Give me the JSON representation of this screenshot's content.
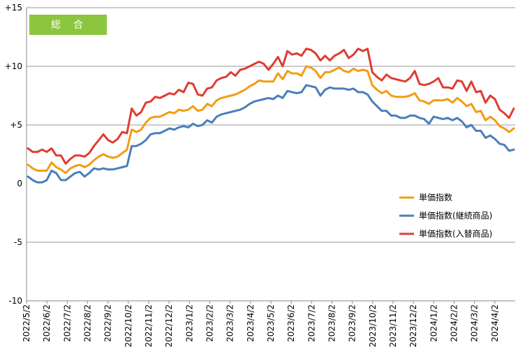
{
  "chart_data": {
    "type": "line",
    "title": "総　合",
    "title_box_color": "#8cc63f",
    "xlabel": "",
    "ylabel": "",
    "ylim": [
      -10,
      15
    ],
    "yticks": [
      {
        "value": 15,
        "label": "+15"
      },
      {
        "value": 10,
        "label": "+10"
      },
      {
        "value": 5,
        "label": "+5"
      },
      {
        "value": 0,
        "label": "0"
      },
      {
        "value": -5,
        "label": "-5"
      },
      {
        "value": -10,
        "label": "-10"
      }
    ],
    "x_tick_labels": [
      "2022/5/2",
      "2022/6/2",
      "2022/7/2",
      "2022/8/2",
      "2022/9/2",
      "2022/10/2",
      "2022/11/2",
      "2022/12/2",
      "2023/1/2",
      "2023/2/2",
      "2023/3/2",
      "2023/4/2",
      "2023/5/2",
      "2023/6/2",
      "2023/7/2",
      "2023/8/2",
      "2023/9/2",
      "2023/10/2",
      "2023/11/2",
      "2023/12/2",
      "2024/1/2",
      "2024/2/2",
      "2024/3/2",
      "2024/4/2"
    ],
    "grid": "horizontal-major",
    "legend_position": "right-middle",
    "series": [
      {
        "name": "単価指数",
        "color": "#f39c12",
        "values": [
          1.6,
          1.3,
          1.1,
          1.1,
          1.1,
          1.8,
          1.4,
          1.2,
          0.9,
          1.3,
          1.5,
          1.6,
          1.4,
          1.6,
          2.0,
          2.3,
          2.5,
          2.3,
          2.2,
          2.3,
          2.6,
          2.9,
          4.6,
          4.4,
          4.6,
          5.2,
          5.6,
          5.7,
          5.7,
          5.9,
          6.1,
          6.0,
          6.3,
          6.2,
          6.3,
          6.6,
          6.2,
          6.3,
          6.8,
          6.6,
          7.1,
          7.3,
          7.4,
          7.5,
          7.6,
          7.8,
          8.0,
          8.3,
          8.5,
          8.8,
          8.7,
          8.7,
          8.7,
          9.4,
          8.9,
          9.6,
          9.4,
          9.4,
          9.2,
          10.0,
          9.9,
          9.6,
          9.0,
          9.5,
          9.5,
          9.7,
          9.9,
          9.6,
          9.5,
          9.8,
          9.6,
          9.7,
          9.6,
          8.4,
          8.0,
          7.7,
          7.9,
          7.5,
          7.4,
          7.4,
          7.4,
          7.5,
          7.7,
          7.1,
          7.0,
          6.8,
          7.1,
          7.1,
          7.1,
          7.2,
          6.9,
          7.3,
          7.0,
          6.6,
          6.8,
          6.1,
          6.2,
          5.4,
          5.7,
          5.4,
          4.9,
          4.7,
          4.4,
          4.7
        ]
      },
      {
        "name": "単価指数(継続商品)",
        "color": "#4a7ebb",
        "values": [
          0.6,
          0.3,
          0.1,
          0.1,
          0.3,
          1.1,
          0.9,
          0.3,
          0.3,
          0.6,
          0.9,
          1.0,
          0.6,
          0.9,
          1.3,
          1.2,
          1.3,
          1.2,
          1.2,
          1.3,
          1.4,
          1.5,
          3.2,
          3.2,
          3.4,
          3.7,
          4.2,
          4.3,
          4.3,
          4.5,
          4.7,
          4.6,
          4.8,
          4.9,
          4.8,
          5.1,
          4.9,
          5.0,
          5.4,
          5.2,
          5.7,
          5.9,
          6.0,
          6.1,
          6.2,
          6.3,
          6.5,
          6.8,
          7.0,
          7.1,
          7.2,
          7.3,
          7.2,
          7.5,
          7.3,
          7.9,
          7.8,
          7.7,
          7.8,
          8.4,
          8.3,
          8.2,
          7.5,
          8.0,
          8.2,
          8.1,
          8.1,
          8.1,
          8.0,
          8.1,
          7.8,
          7.8,
          7.6,
          7.0,
          6.6,
          6.2,
          6.2,
          5.8,
          5.8,
          5.6,
          5.6,
          5.8,
          5.8,
          5.6,
          5.5,
          5.1,
          5.7,
          5.6,
          5.5,
          5.6,
          5.4,
          5.6,
          5.3,
          4.8,
          5.0,
          4.5,
          4.5,
          3.9,
          4.1,
          3.8,
          3.4,
          3.3,
          2.8,
          2.9
        ]
      },
      {
        "name": "単価指数(入替商品)",
        "color": "#e03c31",
        "values": [
          3.0,
          2.7,
          2.7,
          2.9,
          2.7,
          3.0,
          2.4,
          2.4,
          1.7,
          2.1,
          2.4,
          2.4,
          2.3,
          2.6,
          3.2,
          3.7,
          4.2,
          3.7,
          3.5,
          3.8,
          4.4,
          4.3,
          6.4,
          5.8,
          6.1,
          6.9,
          7.0,
          7.4,
          7.3,
          7.5,
          7.7,
          7.6,
          8.0,
          7.8,
          8.6,
          8.5,
          7.6,
          7.5,
          8.1,
          8.2,
          8.8,
          9.0,
          9.1,
          9.5,
          9.2,
          9.7,
          9.8,
          10.0,
          10.2,
          10.4,
          10.2,
          9.7,
          10.2,
          10.8,
          10.0,
          11.3,
          11.0,
          11.1,
          10.9,
          11.5,
          11.4,
          11.1,
          10.5,
          10.9,
          10.5,
          10.9,
          11.1,
          11.4,
          10.7,
          11.0,
          11.5,
          11.3,
          11.5,
          9.5,
          9.1,
          8.8,
          9.3,
          9.0,
          8.9,
          8.8,
          8.7,
          9.0,
          9.6,
          8.5,
          8.4,
          8.5,
          8.7,
          9.0,
          8.2,
          8.2,
          8.1,
          8.8,
          8.7,
          7.9,
          8.7,
          7.8,
          7.9,
          6.9,
          7.5,
          7.2,
          6.3,
          6.0,
          5.6,
          6.4
        ]
      }
    ]
  }
}
